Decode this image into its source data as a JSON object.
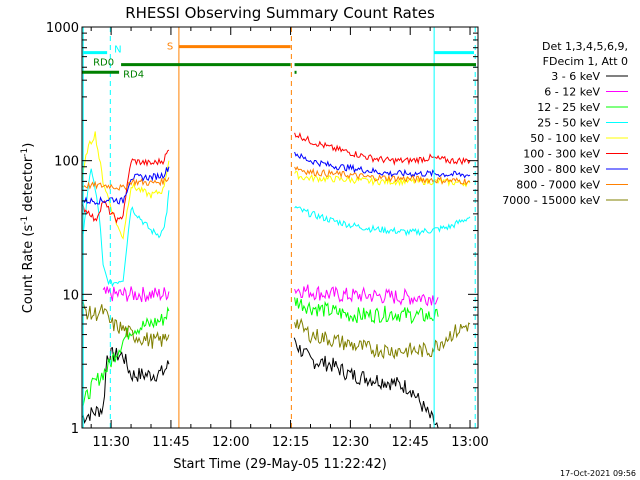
{
  "chart_data": {
    "type": "line",
    "title": "RHESSI Observing Summary Count Rates",
    "xlabel": "Start Time (29-May-05 11:22:42)",
    "ylabel_main": "Count Rate (s",
    "ylabel_sup1": "-1",
    "ylabel_mid": " detector",
    "ylabel_sup2": "-1",
    "ylabel_end": ")",
    "yscale": "log",
    "ylim": [
      1,
      1000
    ],
    "xlim": [
      682.7,
      782.0
    ],
    "x_ticks": [
      {
        "v": 690,
        "label": "11:30"
      },
      {
        "v": 705,
        "label": "11:45"
      },
      {
        "v": 720,
        "label": "12:00"
      },
      {
        "v": 735,
        "label": "12:15"
      },
      {
        "v": 750,
        "label": "12:30"
      },
      {
        "v": 765,
        "label": "12:45"
      },
      {
        "v": 780,
        "label": "13:00"
      }
    ],
    "y_ticks": [
      {
        "v": 1,
        "label": "1"
      },
      {
        "v": 10,
        "label": "10"
      },
      {
        "v": 100,
        "label": "100"
      },
      {
        "v": 1000,
        "label": "1000"
      }
    ],
    "legend": {
      "header": [
        "Det 1,3,4,5,6,9,",
        "FDecim 1, Att 0"
      ],
      "placement": "right"
    },
    "series": [
      {
        "name": "3 - 6 keV",
        "color": "#000000",
        "x": [
          682.7,
          688,
          689,
          693,
          695,
          700,
          703,
          704.5
        ],
        "y": [
          1.2,
          1.4,
          3.5,
          3.5,
          2.5,
          2.5,
          2.6,
          3.0
        ],
        "gap": [
          704.5,
          735.9
        ],
        "x2": [
          735.9,
          737,
          740,
          745,
          750,
          760,
          765,
          770,
          772
        ],
        "y2": [
          4.8,
          4.0,
          3.2,
          3.0,
          2.5,
          2.2,
          2.0,
          1.2,
          1.0
        ]
      },
      {
        "name": "6 - 12 keV",
        "color": "#ff00ff",
        "x": [
          688,
          690,
          695,
          700,
          703,
          704.5
        ],
        "y": [
          10,
          10,
          10,
          10,
          10,
          10.5
        ],
        "gap": [
          704.5,
          736
        ],
        "x2": [
          736,
          740,
          745,
          750,
          755,
          760,
          765,
          772
        ],
        "y2": [
          11,
          10.5,
          10,
          9.8,
          9.8,
          9.6,
          9.5,
          9.5
        ]
      },
      {
        "name": "12 - 25 keV",
        "color": "#00ff00",
        "x": [
          683,
          685,
          689,
          693,
          695,
          700,
          703,
          704.5
        ],
        "y": [
          1.5,
          2.0,
          2.8,
          4.5,
          5.5,
          6.0,
          6.5,
          7.5
        ],
        "gap": [
          704.5,
          736
        ],
        "x2": [
          736,
          740,
          745,
          750,
          755,
          760,
          765,
          772
        ],
        "y2": [
          9.0,
          8.0,
          7.5,
          7.0,
          7.0,
          7.2,
          7.0,
          6.8
        ]
      },
      {
        "name": "25 - 50 keV",
        "color": "#00ffff",
        "x": [
          683,
          685,
          687,
          688,
          689,
          690,
          693,
          695,
          698,
          700,
          702,
          703,
          704,
          704.5
        ],
        "y": [
          30,
          90,
          40,
          16,
          13,
          12,
          13,
          45,
          35,
          30,
          28,
          30,
          40,
          60
        ],
        "gap": [
          704.5,
          736
        ],
        "x2": [
          736,
          738,
          740,
          745,
          750,
          755,
          760,
          765,
          770,
          775,
          780
        ],
        "y2": [
          45,
          42,
          40,
          36,
          33,
          31,
          30,
          29,
          30,
          32,
          38
        ]
      },
      {
        "name": "50 - 100 keV",
        "color": "#ffff00",
        "x": [
          682.7,
          684,
          686,
          688,
          690,
          692,
          693,
          695,
          700,
          703,
          704.5
        ],
        "y": [
          70,
          120,
          160,
          70,
          45,
          30,
          27,
          65,
          55,
          60,
          100
        ],
        "gap": [
          704.5,
          736
        ],
        "x2": [
          736,
          738,
          740,
          745,
          750,
          755,
          760,
          765,
          770,
          780
        ],
        "y2": [
          80,
          75,
          74,
          73,
          72,
          70,
          70,
          70,
          70,
          68
        ]
      },
      {
        "name": "100 - 300 keV",
        "color": "#ff0000",
        "x": [
          682.7,
          685,
          686,
          688,
          690,
          692,
          693,
          695,
          700,
          703,
          704.5
        ],
        "y": [
          45,
          40,
          35,
          50,
          40,
          35,
          40,
          100,
          95,
          100,
          120
        ],
        "gap": [
          704.5,
          736
        ],
        "x2": [
          736,
          738,
          740,
          745,
          750,
          755,
          760,
          765,
          770,
          775,
          780
        ],
        "y2": [
          160,
          150,
          140,
          125,
          115,
          105,
          100,
          100,
          105,
          100,
          100
        ]
      },
      {
        "name": "300 - 800 keV",
        "color": "#0000ff",
        "x": [
          682.7,
          688,
          690,
          692,
          693,
          695,
          700,
          703,
          704.5
        ],
        "y": [
          50,
          50,
          52,
          50,
          50,
          75,
          75,
          78,
          90
        ],
        "gap": [
          704.5,
          736
        ],
        "x2": [
          736,
          738,
          740,
          745,
          750,
          755,
          760,
          765,
          770,
          780
        ],
        "y2": [
          115,
          105,
          100,
          92,
          88,
          84,
          80,
          80,
          80,
          78
        ]
      },
      {
        "name": "800 - 7000 keV",
        "color": "#ff8000",
        "x": [
          682.7,
          685,
          688,
          690,
          693,
          695,
          700,
          703,
          704.5
        ],
        "y": [
          65,
          65,
          65,
          65,
          62,
          70,
          68,
          70,
          75
        ],
        "gap": [
          704.5,
          736
        ],
        "x2": [
          736,
          738,
          740,
          745,
          750,
          755,
          760,
          765,
          770,
          780
        ],
        "y2": [
          90,
          85,
          82,
          80,
          78,
          75,
          74,
          73,
          72,
          70
        ]
      },
      {
        "name": "7000 - 15000 keV",
        "color": "#808000",
        "x": [
          682.7,
          685,
          688,
          690,
          693,
          695,
          700,
          703,
          704.5
        ],
        "y": [
          8,
          7,
          7.5,
          6,
          5.5,
          5,
          4.5,
          4.5,
          5
        ],
        "gap": [
          704.5,
          736
        ],
        "x2": [
          736,
          738,
          740,
          745,
          750,
          755,
          760,
          765,
          770,
          775,
          780
        ],
        "y2": [
          6.5,
          5.5,
          5,
          4.6,
          4.2,
          3.9,
          3.8,
          3.8,
          3.8,
          5,
          6
        ]
      }
    ],
    "flags": [
      {
        "label": "N",
        "color": "#00ffff",
        "segments": [
          [
            683,
            689
          ],
          [
            771,
            781
          ]
        ],
        "yfrac": 0.049
      },
      {
        "label": "RD0",
        "color": "#008000",
        "segments": [
          [
            692.5,
            735
          ],
          [
            736,
            781.5
          ]
        ],
        "yfrac": 0.079
      },
      {
        "label": "RD4",
        "color": "#008000",
        "segments": [
          [
            682.7,
            692
          ],
          [
            736,
            736.5
          ]
        ],
        "yfrac": 0.098
      },
      {
        "label": "S",
        "color": "#ff8000",
        "segments": [
          [
            707,
            735
          ]
        ],
        "yfrac": 0.034
      }
    ],
    "vlines": [
      {
        "x": 683,
        "color": "#00ffff",
        "style": "solid"
      },
      {
        "x": 689.8,
        "color": "#00ffff",
        "style": "dash"
      },
      {
        "x": 707,
        "color": "#ff8000",
        "style": "solid"
      },
      {
        "x": 735.2,
        "color": "#ff8000",
        "style": "dash"
      },
      {
        "x": 771,
        "color": "#00ffff",
        "style": "solid"
      },
      {
        "x": 781.3,
        "color": "#00ffff",
        "style": "dash"
      }
    ],
    "footer": "17-Oct-2021 09:56"
  }
}
